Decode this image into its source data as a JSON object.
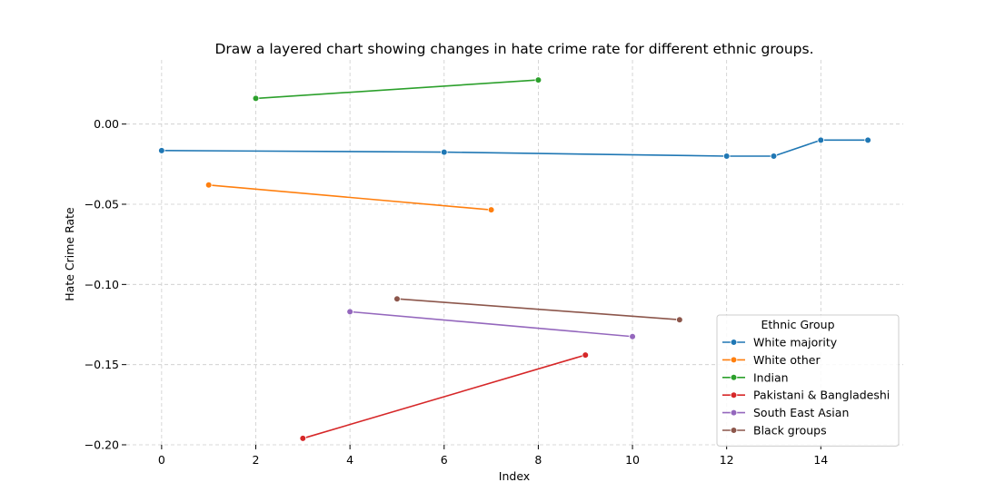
{
  "chart_data": {
    "type": "line",
    "title": "Draw a layered chart showing changes in hate crime rate for different ethnic groups.",
    "xlabel": "Index",
    "ylabel": "Hate Crime Rate",
    "xlim": [
      -0.75,
      15.75
    ],
    "ylim": [
      -0.2,
      0.04
    ],
    "xticks": [
      0,
      2,
      4,
      6,
      8,
      10,
      12,
      14
    ],
    "yticks": [
      -0.2,
      -0.15,
      -0.1,
      -0.05,
      0.0
    ],
    "ytick_labels": [
      "−0.20",
      "−0.15",
      "−0.10",
      "−0.05",
      "0.00"
    ],
    "grid": true,
    "legend": {
      "title": "Ethnic Group",
      "position": "lower-right"
    },
    "series": [
      {
        "name": "White majority",
        "color": "#1f77b4",
        "x": [
          0,
          6,
          12,
          13,
          14,
          15
        ],
        "y": [
          -0.0165,
          -0.0175,
          -0.02,
          -0.02,
          -0.01,
          -0.01
        ]
      },
      {
        "name": "White other",
        "color": "#ff7f0e",
        "x": [
          1,
          7
        ],
        "y": [
          -0.038,
          -0.0535
        ]
      },
      {
        "name": "Indian",
        "color": "#2ca02c",
        "x": [
          2,
          8
        ],
        "y": [
          0.016,
          0.0275
        ]
      },
      {
        "name": "Pakistani & Bangladeshi",
        "color": "#d62728",
        "x": [
          3,
          9
        ],
        "y": [
          -0.196,
          -0.144
        ]
      },
      {
        "name": "South East Asian",
        "color": "#9467bd",
        "x": [
          4,
          10
        ],
        "y": [
          -0.117,
          -0.1325
        ]
      },
      {
        "name": "Black groups",
        "color": "#8c564b",
        "x": [
          5,
          11
        ],
        "y": [
          -0.109,
          -0.122
        ]
      }
    ]
  }
}
